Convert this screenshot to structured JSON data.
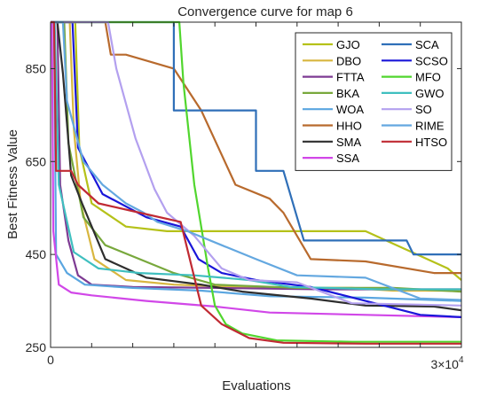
{
  "chart_data": {
    "type": "line",
    "title": "Convergence curve for map 6",
    "xlabel": "Evaluations",
    "ylabel": "Best Fitness Value",
    "x_tick_labels": [
      "0"
    ],
    "x_multiplier_label": "3×10",
    "x_multiplier_exponent": "4",
    "y_ticks": [
      250,
      450,
      650,
      850
    ],
    "y_tick_labels": [
      "250",
      "450",
      "650",
      "850"
    ],
    "xlim": [
      0,
      30000
    ],
    "ylim": [
      250,
      950
    ],
    "grid": false,
    "legend_position": "top-right",
    "series": [
      {
        "name": "GJO",
        "color": "#b5c119",
        "points": [
          [
            0,
            950
          ],
          [
            1800,
            950
          ],
          [
            2100,
            680
          ],
          [
            3000,
            560
          ],
          [
            5500,
            510
          ],
          [
            8500,
            500
          ],
          [
            16000,
            500
          ],
          [
            23000,
            500
          ],
          [
            29000,
            420
          ],
          [
            30000,
            395
          ]
        ]
      },
      {
        "name": "DBO",
        "color": "#d8b63f",
        "points": [
          [
            0,
            950
          ],
          [
            1400,
            950
          ],
          [
            1700,
            720
          ],
          [
            2200,
            560
          ],
          [
            3200,
            440
          ],
          [
            5500,
            395
          ],
          [
            9000,
            385
          ],
          [
            16000,
            378
          ],
          [
            22000,
            378
          ],
          [
            25000,
            372
          ],
          [
            30000,
            372
          ]
        ]
      },
      {
        "name": "FTTA",
        "color": "#7e3b93",
        "points": [
          [
            0,
            950
          ],
          [
            500,
            950
          ],
          [
            700,
            600
          ],
          [
            1300,
            480
          ],
          [
            2000,
            405
          ],
          [
            3000,
            385
          ],
          [
            6000,
            380
          ],
          [
            12000,
            378
          ],
          [
            20000,
            375
          ],
          [
            30000,
            375
          ]
        ]
      },
      {
        "name": "BKA",
        "color": "#78a83c",
        "points": [
          [
            0,
            950
          ],
          [
            1000,
            950
          ],
          [
            1300,
            690
          ],
          [
            2400,
            530
          ],
          [
            4000,
            470
          ],
          [
            6500,
            440
          ],
          [
            9000,
            410
          ],
          [
            12000,
            385
          ],
          [
            18000,
            378
          ],
          [
            25000,
            378
          ],
          [
            30000,
            370
          ]
        ]
      },
      {
        "name": "WOA",
        "color": "#5aa6e0",
        "points": [
          [
            0,
            950
          ],
          [
            250,
            950
          ],
          [
            400,
            450
          ],
          [
            1200,
            410
          ],
          [
            2500,
            385
          ],
          [
            6000,
            378
          ],
          [
            11000,
            372
          ],
          [
            16000,
            360
          ],
          [
            23000,
            357
          ],
          [
            30000,
            350
          ]
        ]
      },
      {
        "name": "HHO",
        "color": "#b86a2d",
        "points": [
          [
            0,
            950
          ],
          [
            4000,
            950
          ],
          [
            4400,
            880
          ],
          [
            5500,
            880
          ],
          [
            9000,
            850
          ],
          [
            11000,
            760
          ],
          [
            13500,
            600
          ],
          [
            16000,
            570
          ],
          [
            17000,
            540
          ],
          [
            19000,
            440
          ],
          [
            23000,
            435
          ],
          [
            28000,
            410
          ],
          [
            30000,
            410
          ]
        ]
      },
      {
        "name": "SMA",
        "color": "#2e2e2e",
        "points": [
          [
            0,
            950
          ],
          [
            500,
            950
          ],
          [
            900,
            840
          ],
          [
            1500,
            620
          ],
          [
            2300,
            560
          ],
          [
            4000,
            440
          ],
          [
            7000,
            400
          ],
          [
            11000,
            385
          ],
          [
            14000,
            370
          ],
          [
            19000,
            355
          ],
          [
            23000,
            340
          ],
          [
            28000,
            338
          ],
          [
            30000,
            330
          ]
        ]
      },
      {
        "name": "SSA",
        "color": "#d147e8",
        "points": [
          [
            0,
            950
          ],
          [
            100,
            950
          ],
          [
            200,
            500
          ],
          [
            600,
            385
          ],
          [
            1500,
            368
          ],
          [
            3000,
            362
          ],
          [
            7000,
            350
          ],
          [
            12000,
            338
          ],
          [
            16000,
            325
          ],
          [
            23000,
            320
          ],
          [
            30000,
            315
          ]
        ]
      },
      {
        "name": "SCA",
        "color": "#2f6fb8",
        "points": [
          [
            0,
            950
          ],
          [
            9000,
            950
          ],
          [
            9000,
            760
          ],
          [
            15000,
            760
          ],
          [
            15000,
            630
          ],
          [
            17000,
            630
          ],
          [
            18500,
            480
          ],
          [
            22000,
            480
          ],
          [
            26000,
            480
          ],
          [
            26500,
            450
          ],
          [
            30000,
            450
          ]
        ]
      },
      {
        "name": "SCSO",
        "color": "#1a16d9",
        "points": [
          [
            0,
            950
          ],
          [
            1600,
            950
          ],
          [
            2000,
            680
          ],
          [
            3800,
            580
          ],
          [
            7000,
            530
          ],
          [
            9500,
            510
          ],
          [
            10800,
            440
          ],
          [
            12500,
            410
          ],
          [
            15000,
            395
          ],
          [
            19000,
            380
          ],
          [
            23000,
            350
          ],
          [
            27000,
            320
          ],
          [
            30000,
            315
          ]
        ]
      },
      {
        "name": "MFO",
        "color": "#51d62e",
        "points": [
          [
            0,
            950
          ],
          [
            9400,
            950
          ],
          [
            9700,
            820
          ],
          [
            10500,
            600
          ],
          [
            11500,
            420
          ],
          [
            12000,
            340
          ],
          [
            12800,
            300
          ],
          [
            14000,
            280
          ],
          [
            16500,
            265
          ],
          [
            22000,
            262
          ],
          [
            30000,
            262
          ]
        ]
      },
      {
        "name": "GWO",
        "color": "#3fbfbf",
        "points": [
          [
            0,
            950
          ],
          [
            300,
            950
          ],
          [
            600,
            600
          ],
          [
            1700,
            455
          ],
          [
            3500,
            420
          ],
          [
            6500,
            410
          ],
          [
            10500,
            405
          ],
          [
            14500,
            395
          ],
          [
            17500,
            380
          ],
          [
            24000,
            375
          ],
          [
            30000,
            375
          ]
        ]
      },
      {
        "name": "SO",
        "color": "#b3a0ef",
        "points": [
          [
            0,
            950
          ],
          [
            4200,
            950
          ],
          [
            4800,
            850
          ],
          [
            6200,
            700
          ],
          [
            7600,
            590
          ],
          [
            8500,
            540
          ],
          [
            10500,
            490
          ],
          [
            12500,
            420
          ],
          [
            14500,
            395
          ],
          [
            18000,
            390
          ],
          [
            22000,
            345
          ],
          [
            30000,
            340
          ]
        ]
      },
      {
        "name": "RIME",
        "color": "#64a8e0",
        "points": [
          [
            0,
            950
          ],
          [
            900,
            950
          ],
          [
            1200,
            780
          ],
          [
            2400,
            650
          ],
          [
            3800,
            600
          ],
          [
            5500,
            560
          ],
          [
            6800,
            540
          ],
          [
            7800,
            520
          ],
          [
            10000,
            500
          ],
          [
            12500,
            470
          ],
          [
            15000,
            440
          ],
          [
            18000,
            405
          ],
          [
            23000,
            400
          ],
          [
            27000,
            355
          ],
          [
            30000,
            352
          ]
        ]
      },
      {
        "name": "HTSO",
        "color": "#c02a33",
        "points": [
          [
            0,
            950
          ],
          [
            250,
            950
          ],
          [
            400,
            630
          ],
          [
            1500,
            630
          ],
          [
            2000,
            600
          ],
          [
            3500,
            560
          ],
          [
            6500,
            540
          ],
          [
            9500,
            520
          ],
          [
            11000,
            340
          ],
          [
            12500,
            300
          ],
          [
            14500,
            270
          ],
          [
            17000,
            260
          ],
          [
            23000,
            258
          ],
          [
            30000,
            258
          ]
        ]
      }
    ]
  }
}
